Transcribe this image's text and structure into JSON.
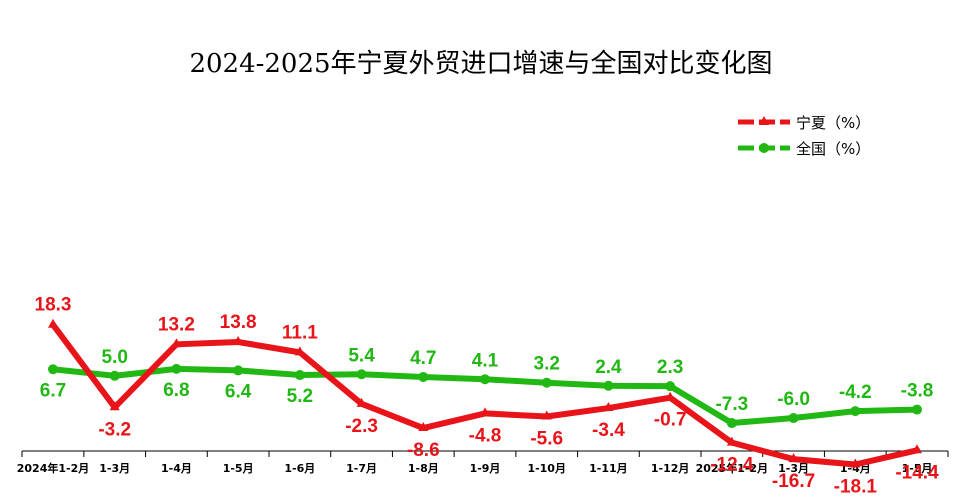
{
  "chart_data": {
    "type": "line",
    "title": "2024-2025年宁夏外贸进口增速与全国对比变化图",
    "categories": [
      "2024年1-2月",
      "1-3月",
      "1-4月",
      "1-5月",
      "1-6月",
      "1-7月",
      "1-8月",
      "1-9月",
      "1-10月",
      "1-11月",
      "1-12月",
      "2025年1-2月",
      "1-3月",
      "1-4月",
      "1-5月"
    ],
    "series": [
      {
        "name": "宁夏（%）",
        "color": "#e8141a",
        "marker": "triangle",
        "values": [
          18.3,
          -3.2,
          13.2,
          13.8,
          11.1,
          -2.3,
          -8.6,
          -4.8,
          -5.6,
          -3.4,
          -0.7,
          -12.4,
          -16.7,
          -18.1,
          -14.4
        ]
      },
      {
        "name": "全国（%）",
        "color": "#22b814",
        "marker": "circle",
        "values": [
          6.7,
          5.0,
          6.8,
          6.4,
          5.2,
          5.4,
          4.7,
          4.1,
          3.2,
          2.4,
          2.3,
          -7.3,
          -6.0,
          -4.2,
          -3.8
        ]
      }
    ],
    "xlabel": "",
    "ylabel": "",
    "grid": false,
    "legend_position": "top-right",
    "data_labels": true
  }
}
